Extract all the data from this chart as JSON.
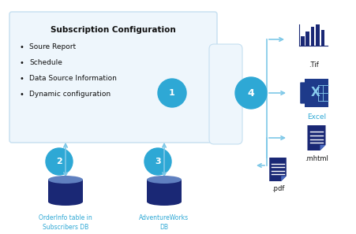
{
  "bg_color": "#ffffff",
  "box_color": "#eef6fc",
  "box_border_color": "#c5dff0",
  "circle_color": "#2ea8d5",
  "arrow_color": "#7ec8e8",
  "arrow_head_color": "#5ab0d4",
  "dark_navy": "#1a2875",
  "db_top_color": "#5a7ec8",
  "title": "Subscription Configuration",
  "bullets": [
    "Soure Report",
    "Schedule",
    "Data Source Information",
    "Dynamic configuration"
  ],
  "label2": "OrderInfo table in\nSubscribers DB",
  "label3": "AdventureWorks\nDB",
  "tif_label": ".Tif",
  "excel_label": "Excel",
  "mhtml_label": ".mhtml",
  "pdf_label": ".pdf",
  "figsize": [
    4.51,
    2.97
  ],
  "dpi": 100
}
